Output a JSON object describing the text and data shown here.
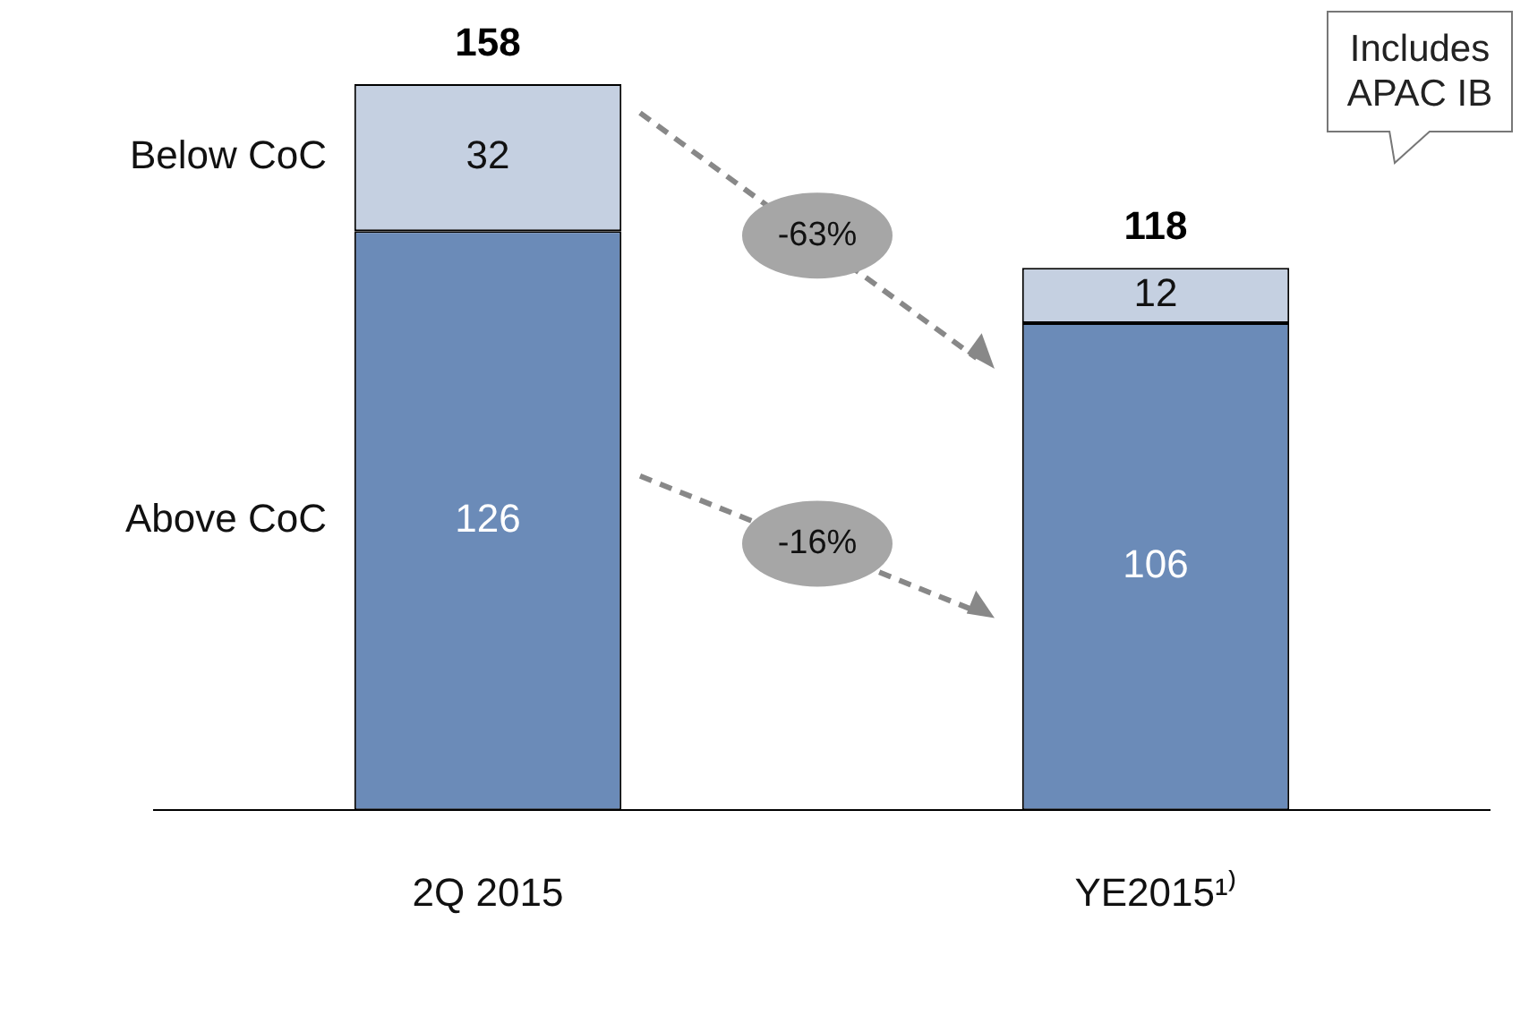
{
  "chart_data": {
    "type": "bar",
    "stacked": true,
    "categories": [
      "2Q 2015",
      "YE2015¹⁾"
    ],
    "series": [
      {
        "name": "Above CoC",
        "color": "#6b8bb8",
        "values": [
          126,
          106
        ]
      },
      {
        "name": "Below CoC",
        "color": "#c5d0e1",
        "values": [
          32,
          12
        ]
      }
    ],
    "data_labels": true,
    "totals": [
      "158",
      "118"
    ],
    "legend": false,
    "grid": false,
    "annotations": [
      "-63%",
      "-16%",
      "Includes APAC IB"
    ]
  }
}
